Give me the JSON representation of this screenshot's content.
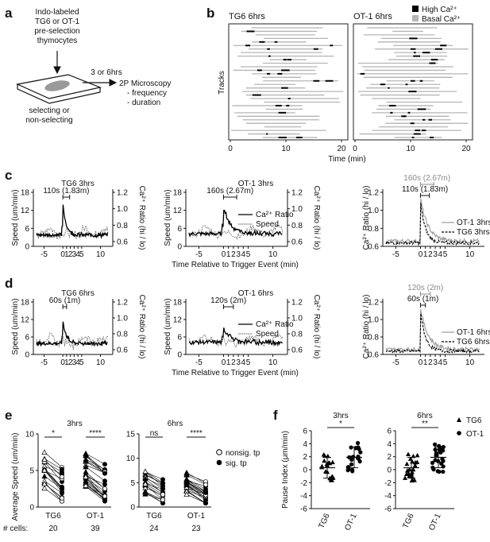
{
  "panels": {
    "a": {
      "letter": "a",
      "top_text": [
        "Indo-labeled",
        "TG6 or OT-1",
        "pre-selection",
        "thymocytes"
      ],
      "time_label": "3 or 6hrs",
      "slide_label": [
        "selecting or",
        "non-selecting"
      ],
      "micro_lines": [
        "2P Microscopy",
        "- frequency",
        "- duration"
      ]
    },
    "b": {
      "letter": "b",
      "left_title": "TG6 6hrs",
      "right_title": "OT-1 6hrs",
      "legend_high": "High Ca²⁺",
      "legend_basal": "Basal Ca²⁺",
      "ylabel": "Tracks",
      "xlabel": "Time (min)",
      "xticks": [
        "0",
        "10",
        "20"
      ]
    },
    "c": {
      "letter": "c",
      "left_title": "TG6 3hrs",
      "mid_title": "OT-1 3hrs",
      "left_ann": "110s (1.83m)",
      "mid_ann": "160s (2.67m)",
      "right_ann_grey": "160s (2.67m)",
      "right_ann_black": "110s (1.83m)",
      "legend_ca": "Ca²⁺ Ratio",
      "legend_speed": "Speed",
      "legend_ot1": "OT-1 3hrs",
      "legend_tg6": "TG6 3hrs",
      "xlabel": "Time Relative to Trigger Event (min)"
    },
    "d": {
      "letter": "d",
      "left_title": "TG6 6hrs",
      "mid_title": "OT-1 6hrs",
      "left_ann": "60s (1m)",
      "mid_ann": "120s (2m)",
      "right_ann_grey": "120s (2m)",
      "right_ann_black": "60s (1m)",
      "legend_ca": "Ca²⁺ Ratio",
      "legend_speed": "Speed",
      "legend_ot1": "OT-1 6hrs",
      "legend_tg6": "TG6 6hrs",
      "xlabel": "Time Relative to Trigger Event (min)"
    },
    "shared": {
      "speed_label": "Speed (um/min)",
      "ratio_label": "Ca²⁺ Ratio (hi / lo)",
      "speed_ticks": [
        "18",
        "12",
        "6",
        "0"
      ],
      "ratio_ticks": [
        "1.2",
        "1.0",
        "0.8",
        "0.6"
      ],
      "ratio_ticks_right": [
        "1.2",
        "1.0",
        "0.8",
        "0.6"
      ],
      "x_ticks": [
        "-5",
        "0",
        "1",
        "2",
        "3",
        "4",
        "5",
        "10"
      ]
    },
    "e": {
      "letter": "e",
      "left_title": "3hrs",
      "right_title": "6hrs",
      "ylabel": "Average Speed (um/min)",
      "yticks_left": [
        "10",
        "5",
        "0"
      ],
      "yticks_right": [
        "15",
        "10",
        "5",
        "0"
      ],
      "sig_left": [
        "*",
        "****"
      ],
      "sig_right": [
        "ns",
        "****"
      ],
      "groups": [
        "TG6",
        "OT-1"
      ],
      "cells_label": "# cells:",
      "cells_left": [
        "20",
        "39"
      ],
      "cells_right": [
        "24",
        "23"
      ],
      "legend_nonsig": "nonsig. tp",
      "legend_sig": "sig. tp"
    },
    "f": {
      "letter": "f",
      "left_title": "3hrs",
      "right_title": "6hrs",
      "ylabel": "Pause Index (μm/min)",
      "yticks": [
        "6",
        "4",
        "2",
        "0",
        "-2",
        "-4",
        "-6"
      ],
      "sig_left": "*",
      "sig_right": "**",
      "groups": [
        "TG6",
        "OT-1"
      ],
      "legend_tg6": "TG6",
      "legend_ot1": "OT-1"
    }
  }
}
